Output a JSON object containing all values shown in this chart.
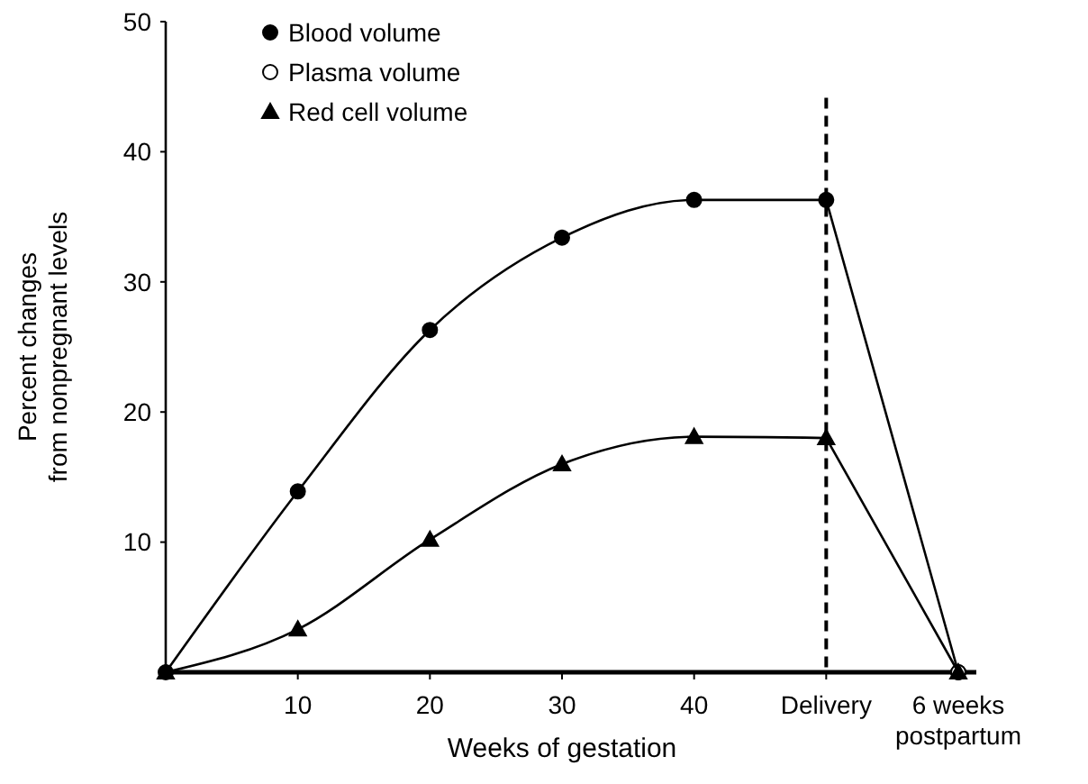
{
  "chart_data": {
    "type": "line",
    "xlabel": "Weeks of gestation",
    "ylabel": "Percent changes\nfrom nonpregnant levels",
    "categories": [
      null,
      "10",
      "20",
      "30",
      "40",
      "Delivery",
      "6 weeks\npostpartum"
    ],
    "series": [
      {
        "name": "Blood volume",
        "color": "#000000",
        "marker": "circle",
        "values": [
          0,
          13.9,
          26.3,
          33.4,
          36.3,
          36.3,
          0
        ]
      },
      {
        "name": "Plasma volume",
        "color": "#ffffff",
        "marker": "circle",
        "values": [
          null,
          null,
          null,
          null,
          null,
          null,
          0
        ]
      },
      {
        "name": "Red cell volume",
        "color": "#000000",
        "marker": "triangle",
        "values": [
          0,
          3.3,
          10.2,
          16,
          18.1,
          18,
          0
        ]
      }
    ],
    "ylim": [
      0,
      50
    ],
    "yticks": [
      10,
      20,
      30,
      40,
      50
    ],
    "grid": false,
    "legend": "top left",
    "ref_lines": [
      {
        "axis": "x",
        "value": "Delivery",
        "line_style": "dashed",
        "color": "#000000"
      }
    ]
  }
}
